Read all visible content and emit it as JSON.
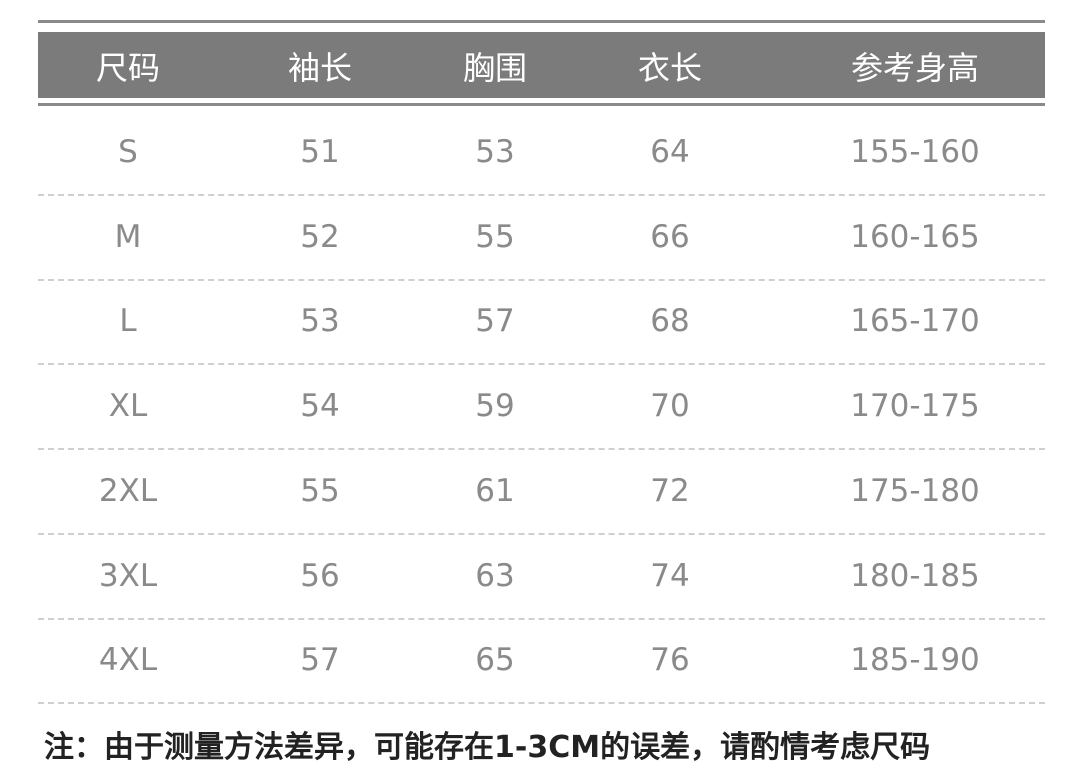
{
  "table": {
    "header": [
      "尺码",
      "袖长",
      "胸围",
      "衣长",
      "参考身高"
    ],
    "rows": [
      [
        "S",
        "51",
        "53",
        "64",
        "155-160"
      ],
      [
        "M",
        "52",
        "55",
        "66",
        "160-165"
      ],
      [
        "L",
        "53",
        "57",
        "68",
        "165-170"
      ],
      [
        "XL",
        "54",
        "59",
        "70",
        "170-175"
      ],
      [
        "2XL",
        "55",
        "61",
        "72",
        "175-180"
      ],
      [
        "3XL",
        "56",
        "63",
        "74",
        "180-185"
      ],
      [
        "4XL",
        "57",
        "65",
        "76",
        "185-190"
      ]
    ]
  },
  "note": "注：由于测量方法差异，可能存在1-3CM的误差，请酌情考虑尺码"
}
